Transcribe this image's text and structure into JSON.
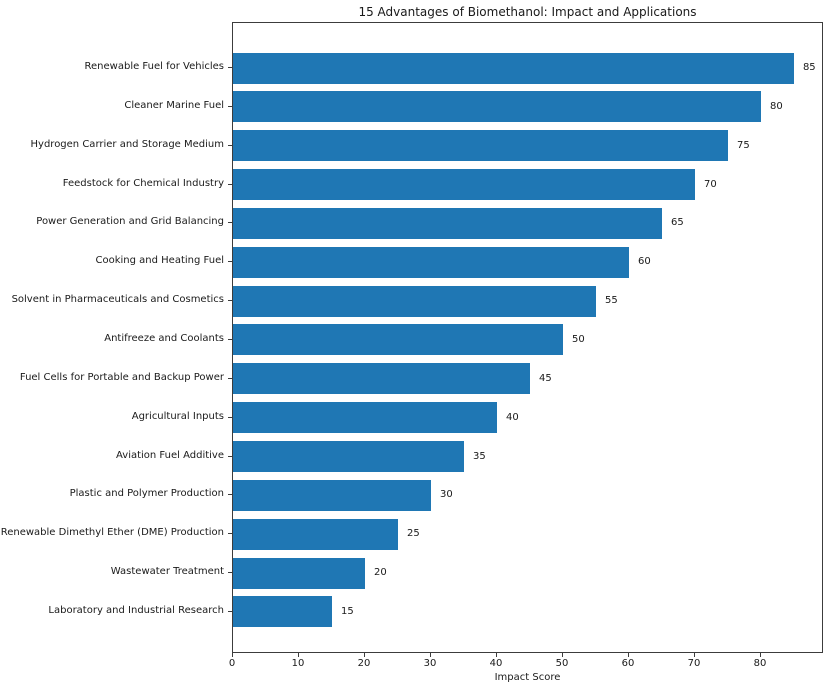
{
  "chart_data": {
    "type": "bar",
    "orientation": "horizontal",
    "title": "15 Advantages of Biomethanol: Impact and Applications",
    "xlabel": "Impact Score",
    "ylabel": "",
    "categories": [
      "Renewable Fuel for Vehicles",
      "Cleaner Marine Fuel",
      "Hydrogen Carrier and Storage Medium",
      "Feedstock for Chemical Industry",
      "Power Generation and Grid Balancing",
      "Cooking and Heating Fuel",
      "Solvent in Pharmaceuticals and Cosmetics",
      "Antifreeze and Coolants",
      "Fuel Cells for Portable and Backup Power",
      "Agricultural Inputs",
      "Aviation Fuel Additive",
      "Plastic and Polymer Production",
      "Renewable Dimethyl Ether (DME) Production",
      "Wastewater Treatment",
      "Laboratory and Industrial Research"
    ],
    "values": [
      85,
      80,
      75,
      70,
      65,
      60,
      55,
      50,
      45,
      40,
      35,
      30,
      25,
      20,
      15
    ],
    "value_labels_shown": true,
    "xlim": [
      0,
      89.25
    ],
    "xticks": [
      0,
      10,
      20,
      30,
      40,
      50,
      60,
      70,
      80
    ],
    "bar_color": "#1f77b4",
    "grid": false,
    "legend_shown": false
  }
}
